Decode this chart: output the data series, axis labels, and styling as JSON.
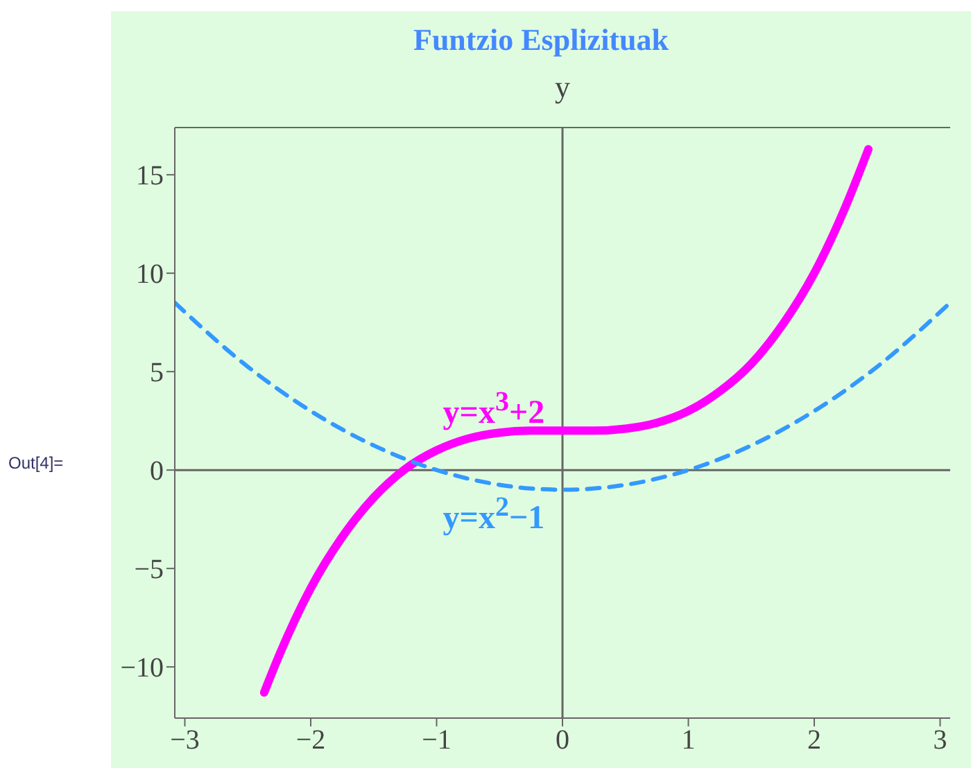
{
  "chart_data": {
    "type": "line",
    "title": "Funtzio Esplizituak",
    "ylabel": "y",
    "annotations": [
      "Out[4]="
    ],
    "marker": "none",
    "xlim": [
      -3.08,
      3.08
    ],
    "ylim": [
      -12.6,
      17.4
    ],
    "xticks": [
      -3,
      -2,
      -1,
      0,
      1,
      2,
      3
    ],
    "yticks": [
      -10,
      -5,
      0,
      5,
      10,
      15
    ],
    "series": [
      {
        "name": "y=x$^{3}$+2",
        "color": "#ff00ff",
        "line_style": "solid",
        "x": [
          -2.37,
          -2.25,
          -2,
          -1.75,
          -1.5,
          -1.25,
          -1,
          -0.75,
          -0.5,
          -0.25,
          0,
          0.25,
          0.5,
          0.75,
          1,
          1.25,
          1.5,
          1.75,
          2,
          2.25,
          2.43
        ],
        "values": [
          -11.3,
          -9.4,
          -6,
          -3.4,
          -1.4,
          0.05,
          1,
          1.6,
          1.9,
          2,
          2,
          2,
          2.1,
          2.4,
          3,
          4,
          5.4,
          7.4,
          10,
          13.4,
          16.3
        ]
      },
      {
        "name": "y=x$^{2}$−1",
        "color": "#3399ff",
        "line_style": "dashed",
        "x": [
          -3.08,
          -2.5,
          -2,
          -1.5,
          -1,
          -0.5,
          0,
          0.5,
          1,
          1.5,
          2,
          2.5,
          3.08
        ],
        "values": [
          8.5,
          5.25,
          3,
          1.25,
          0,
          -0.75,
          -1,
          -0.75,
          0,
          1.25,
          3,
          5.25,
          8.5
        ]
      }
    ]
  }
}
